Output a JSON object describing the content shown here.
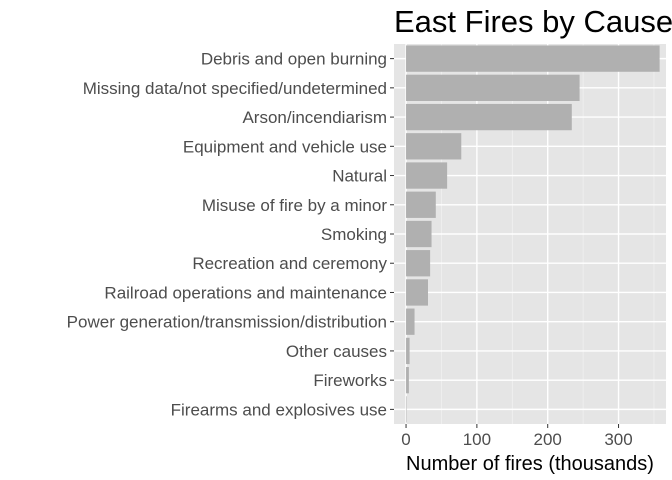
{
  "chart_data": {
    "type": "bar",
    "orientation": "horizontal",
    "title": "East Fires by Cause",
    "xlabel": "Number of fires (thousands)",
    "ylabel": "",
    "categories": [
      "Debris and open burning",
      "Missing data/not specified/undetermined",
      "Arson/incendiarism",
      "Equipment and vehicle use",
      "Natural",
      "Misuse of fire by a minor",
      "Smoking",
      "Recreation and ceremony",
      "Railroad operations and maintenance",
      "Power generation/transmission/distribution",
      "Other causes",
      "Fireworks",
      "Firearms and explosives use"
    ],
    "values": [
      358,
      245,
      234,
      78,
      58,
      42,
      36,
      34,
      31,
      12,
      5,
      4,
      0.5
    ],
    "xlim": [
      -17,
      367
    ],
    "xticks": [
      0,
      100,
      200,
      300
    ],
    "grid": true,
    "legend": "none",
    "colors": {
      "bar": "#b0b0b0",
      "panel": "#e5e5e5",
      "grid_major": "#ffffff",
      "grid_minor": "#f2f2f2"
    }
  }
}
